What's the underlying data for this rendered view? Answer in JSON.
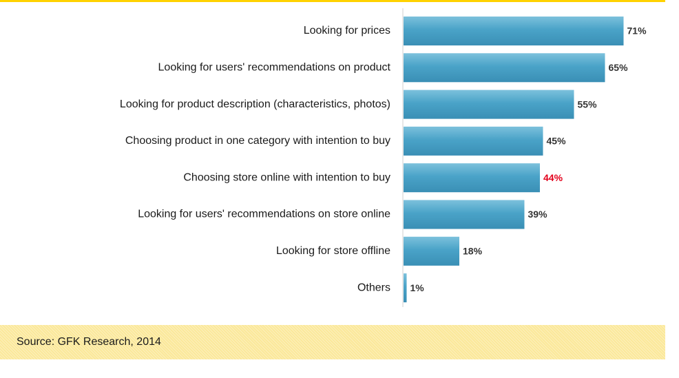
{
  "chart_data": {
    "type": "bar",
    "orientation": "horizontal",
    "categories": [
      "Looking for prices",
      "Looking for users' recommendations on product",
      "Looking for product description  (characteristics, photos)",
      "Choosing product in one category with intention to buy",
      "Choosing store online with intention to buy",
      "Looking for users' recommendations on store online",
      "Looking for store offline",
      "Others"
    ],
    "values": [
      71,
      65,
      55,
      45,
      44,
      39,
      18,
      1
    ],
    "value_labels": [
      "71%",
      "65%",
      "55%",
      "45%",
      "44%",
      "39%",
      "18%",
      "1%"
    ],
    "highlight_index": 4,
    "xlim": [
      0,
      100
    ],
    "grid": false,
    "legend": "none",
    "bar_color": "#4aa3c8",
    "label_color": "#333333",
    "highlight_color": "#e3001b"
  },
  "source": {
    "text": "Source: GFK Research, 2014"
  }
}
